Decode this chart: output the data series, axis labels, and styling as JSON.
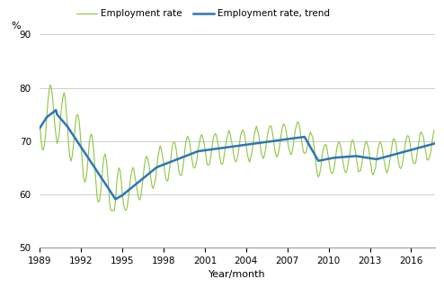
{
  "ylabel": "%",
  "xlabel": "Year/month",
  "legend_labels": [
    "Employment rate",
    "Employment rate, trend"
  ],
  "line_color_employment": "#8DC63F",
  "line_color_trend": "#2E75B6",
  "ylim": [
    50,
    90
  ],
  "yticks": [
    50,
    60,
    70,
    80,
    90
  ],
  "xtick_years": [
    1989,
    1992,
    1995,
    1998,
    2001,
    2004,
    2007,
    2010,
    2013,
    2016
  ],
  "start_year": 1989,
  "start_month": 1,
  "end_year": 2017,
  "end_month": 9,
  "grid_color": "#BBBBBB",
  "spine_color": "#999999"
}
